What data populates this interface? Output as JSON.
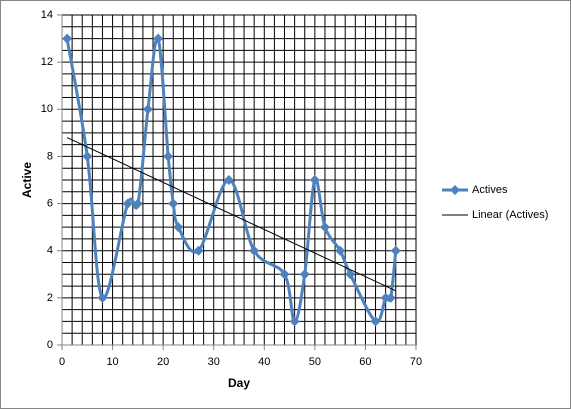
{
  "chart_data": {
    "type": "scatter",
    "x_label": "Day",
    "y_label": "Active",
    "xlim": [
      0,
      70
    ],
    "xticks": [
      0,
      10,
      20,
      30,
      40,
      50,
      60,
      70
    ],
    "ylim": [
      0,
      14
    ],
    "yticks": [
      0,
      2,
      4,
      6,
      8,
      10,
      12,
      14
    ],
    "grid": true,
    "legend": "right",
    "series": [
      {
        "name": "Actives",
        "color": "#4f81bd",
        "style": "smooth-marker",
        "x": [
          1,
          5,
          8,
          13,
          15,
          17,
          19,
          21,
          22,
          23,
          27,
          33,
          38,
          44,
          46,
          48,
          50,
          52,
          55,
          57,
          62,
          64,
          65,
          66
        ],
        "values": [
          13,
          8,
          2,
          6,
          6,
          10,
          13,
          8,
          6,
          5,
          4,
          7,
          4,
          3,
          1,
          3,
          7,
          5,
          4,
          3,
          1,
          2,
          2,
          4
        ]
      },
      {
        "name": "Linear (Actives)",
        "color": "#000000",
        "style": "line",
        "x": [
          1,
          66
        ],
        "values": [
          8.8,
          2.3
        ]
      }
    ]
  }
}
